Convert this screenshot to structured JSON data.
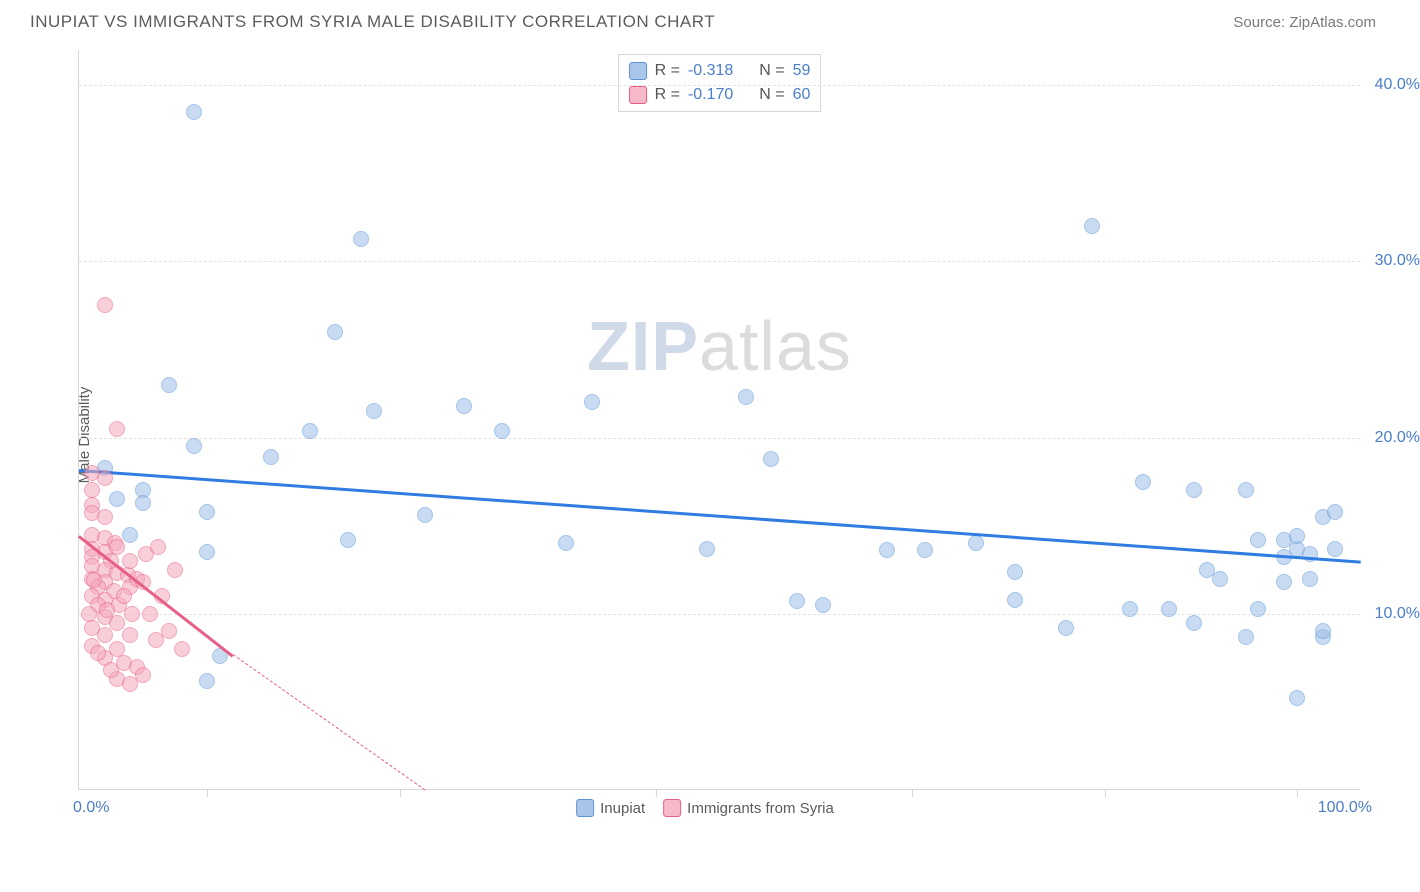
{
  "header": {
    "title": "INUPIAT VS IMMIGRANTS FROM SYRIA MALE DISABILITY CORRELATION CHART",
    "source_prefix": "Source: ",
    "source_name": "ZipAtlas.com"
  },
  "watermark": {
    "bold": "ZIP",
    "rest": "atlas"
  },
  "chart": {
    "type": "scatter",
    "y_axis_label": "Male Disability",
    "xlim": [
      0,
      100
    ],
    "ylim": [
      0,
      42
    ],
    "x_ticks": [
      10,
      25,
      45,
      65,
      80,
      95
    ],
    "x_left_label": "0.0%",
    "x_right_label": "100.0%",
    "y_gridlines": [
      {
        "v": 10,
        "label": "10.0%"
      },
      {
        "v": 20,
        "label": "20.0%"
      },
      {
        "v": 30,
        "label": "30.0%"
      },
      {
        "v": 40,
        "label": "40.0%"
      }
    ],
    "grid_color": "#e3e3e3",
    "axis_color": "#d6d6d6",
    "background_color": "#ffffff",
    "tick_label_color": "#4a7ec9",
    "label_fontsize": 15,
    "tick_fontsize": 16,
    "series": [
      {
        "name": "Inupiat",
        "marker_fill": "#9dbfe8",
        "marker_stroke": "#5d94d6",
        "marker_fill_opacity": 0.55,
        "marker_size": 16,
        "trend_color": "#2f7de0",
        "trend": {
          "x0": 0,
          "y0": 18.2,
          "x1": 100,
          "y1": 13.0
        },
        "R": "-0.318",
        "N": "59",
        "points": [
          [
            9,
            38.5
          ],
          [
            22,
            31.3
          ],
          [
            20,
            26
          ],
          [
            23,
            21.5
          ],
          [
            30,
            21.8
          ],
          [
            18,
            20.4
          ],
          [
            15,
            18.9
          ],
          [
            7,
            23
          ],
          [
            9,
            19.5
          ],
          [
            5,
            17
          ],
          [
            5,
            16.3
          ],
          [
            10,
            15.8
          ],
          [
            10,
            13.5
          ],
          [
            21,
            14.2
          ],
          [
            27,
            15.6
          ],
          [
            33,
            20.4
          ],
          [
            38,
            14
          ],
          [
            40,
            22
          ],
          [
            49,
            13.7
          ],
          [
            52,
            22.3
          ],
          [
            54,
            18.8
          ],
          [
            56,
            10.7
          ],
          [
            58,
            10.5
          ],
          [
            63,
            13.6
          ],
          [
            66,
            13.6
          ],
          [
            70,
            14
          ],
          [
            73,
            10.8
          ],
          [
            73,
            12.4
          ],
          [
            77,
            9.2
          ],
          [
            79,
            32
          ],
          [
            82,
            10.3
          ],
          [
            83,
            17.5
          ],
          [
            85,
            10.3
          ],
          [
            87,
            9.5
          ],
          [
            87,
            17
          ],
          [
            88,
            12.5
          ],
          [
            89,
            12.0
          ],
          [
            91,
            17
          ],
          [
            91,
            8.7
          ],
          [
            92,
            10.3
          ],
          [
            92,
            14.2
          ],
          [
            94,
            14.2
          ],
          [
            94,
            13.2
          ],
          [
            94,
            11.8
          ],
          [
            95,
            13.7
          ],
          [
            95,
            14.4
          ],
          [
            95,
            5.2
          ],
          [
            96,
            13.4
          ],
          [
            96,
            12.0
          ],
          [
            97,
            15.5
          ],
          [
            97,
            8.7
          ],
          [
            97,
            9.0
          ],
          [
            98,
            13.7
          ],
          [
            98,
            15.8
          ],
          [
            11,
            7.6
          ],
          [
            10,
            6.2
          ],
          [
            4,
            14.5
          ],
          [
            3,
            16.5
          ],
          [
            2,
            18.3
          ]
        ]
      },
      {
        "name": "Immigrants from Syria",
        "marker_fill": "#f4a8bb",
        "marker_stroke": "#e85f86",
        "marker_fill_opacity": 0.55,
        "marker_size": 16,
        "trend_color": "#e85f86",
        "trend_solid": {
          "x0": 0,
          "y0": 14.5,
          "x1": 12,
          "y1": 7.7
        },
        "trend_dashed": {
          "x0": 12,
          "y0": 7.7,
          "x1": 27,
          "y1": 0
        },
        "R": "-0.170",
        "N": "60",
        "points": [
          [
            2,
            27.5
          ],
          [
            3,
            20.5
          ],
          [
            1,
            18
          ],
          [
            2,
            17.7
          ],
          [
            1,
            17
          ],
          [
            1,
            16.2
          ],
          [
            1,
            15.7
          ],
          [
            2,
            15.5
          ],
          [
            1,
            14.5
          ],
          [
            2,
            14.3
          ],
          [
            2.8,
            14.0
          ],
          [
            1,
            13.7
          ],
          [
            2,
            13.5
          ],
          [
            1,
            13.2
          ],
          [
            2.5,
            13.0
          ],
          [
            1,
            12.7
          ],
          [
            2,
            12.5
          ],
          [
            3,
            12.3
          ],
          [
            1,
            12.0
          ],
          [
            2,
            11.8
          ],
          [
            1.5,
            11.5
          ],
          [
            2.7,
            11.3
          ],
          [
            1,
            11.0
          ],
          [
            2,
            10.8
          ],
          [
            1.5,
            10.5
          ],
          [
            0.8,
            10.0
          ],
          [
            2,
            9.8
          ],
          [
            3,
            9.5
          ],
          [
            3.8,
            12.2
          ],
          [
            4,
            11.5
          ],
          [
            4.5,
            12.0
          ],
          [
            5,
            11.8
          ],
          [
            3,
            8.0
          ],
          [
            4,
            8.8
          ],
          [
            3.5,
            7.2
          ],
          [
            4.5,
            7.0
          ],
          [
            3,
            6.3
          ],
          [
            4,
            6.0
          ],
          [
            5,
            6.5
          ],
          [
            2,
            7.5
          ],
          [
            2.5,
            6.8
          ],
          [
            1,
            8.2
          ],
          [
            1.5,
            7.8
          ],
          [
            5.5,
            10.0
          ],
          [
            6,
            8.5
          ],
          [
            6.5,
            11.0
          ],
          [
            7,
            9.0
          ],
          [
            7.5,
            12.5
          ],
          [
            8,
            8.0
          ],
          [
            3,
            13.8
          ],
          [
            4,
            13.0
          ],
          [
            1,
            9.2
          ],
          [
            2,
            8.8
          ],
          [
            3.1,
            10.5
          ],
          [
            4.1,
            10.0
          ],
          [
            5.2,
            13.4
          ],
          [
            6.2,
            13.8
          ],
          [
            2.2,
            10.2
          ],
          [
            1.2,
            11.9
          ],
          [
            3.5,
            11.0
          ]
        ]
      }
    ]
  },
  "legend_top": {
    "rows": [
      {
        "swatch_fill": "#a9c5ea",
        "swatch_stroke": "#5d94d6",
        "r_label": "R =",
        "r_val": "-0.318",
        "n_label": "N =",
        "n_val": "59"
      },
      {
        "swatch_fill": "#f6b9c9",
        "swatch_stroke": "#e85f86",
        "r_label": "R =",
        "r_val": "-0.170",
        "n_label": "N =",
        "n_val": "60"
      }
    ]
  },
  "legend_bottom": {
    "items": [
      {
        "swatch_fill": "#a9c5ea",
        "swatch_stroke": "#5d94d6",
        "label": "Inupiat"
      },
      {
        "swatch_fill": "#f6b9c9",
        "swatch_stroke": "#e85f86",
        "label": "Immigrants from Syria"
      }
    ]
  }
}
